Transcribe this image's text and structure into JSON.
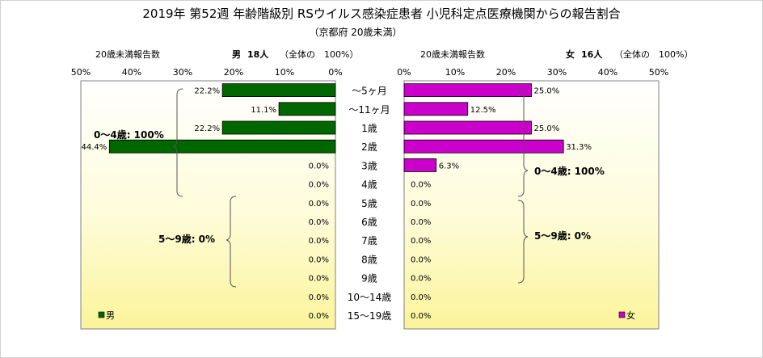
{
  "chart_data": {
    "type": "bar",
    "title": "2019年 第52週 年齢階級別 RSウイルス感染症患者 小児科定点医療機関からの報告割合",
    "subtitle": "（京都府 20歳未満）",
    "categories": [
      "～5ヶ月",
      "～11ヶ月",
      "1歳",
      "2歳",
      "3歳",
      "4歳",
      "5歳",
      "6歳",
      "7歳",
      "8歳",
      "9歳",
      "10～14歳",
      "15～19歳"
    ],
    "axis_ticks": [
      "50%",
      "40%",
      "30%",
      "20%",
      "10%",
      "0%",
      "0%",
      "10%",
      "20%",
      "30%",
      "40%",
      "50%"
    ],
    "xlim": [
      0,
      50
    ],
    "male": {
      "header_label": "20歳未満報告数",
      "name": "男",
      "count_text": "18人",
      "total_text": "（全体の　100%）",
      "legend": "男",
      "color": "#006600",
      "values": [
        22.2,
        11.1,
        22.2,
        44.4,
        0.0,
        0.0,
        0.0,
        0.0,
        0.0,
        0.0,
        0.0,
        0.0,
        0.0
      ],
      "value_labels": [
        "22.2%",
        "11.1%",
        "22.2%",
        "44.4%",
        "0.0%",
        "0.0%",
        "0.0%",
        "0.0%",
        "0.0%",
        "0.0%",
        "0.0%",
        "0.0%",
        "0.0%"
      ],
      "group_labels": [
        "0～4歳: 100%",
        "5～9歳: 0%"
      ]
    },
    "female": {
      "header_label": "20歳未満報告数",
      "name": "女",
      "count_text": "16人",
      "total_text": "（全体の　100%）",
      "legend": "女",
      "color": "#cc00cc",
      "values": [
        25.0,
        12.5,
        25.0,
        31.3,
        6.3,
        0.0,
        0.0,
        0.0,
        0.0,
        0.0,
        0.0,
        0.0,
        0.0
      ],
      "value_labels": [
        "25.0%",
        "12.5%",
        "25.0%",
        "31.3%",
        "6.3%",
        "0.0%",
        "0.0%",
        "0.0%",
        "0.0%",
        "0.0%",
        "0.0%",
        "0.0%",
        "0.0%"
      ],
      "group_labels": [
        "0～4歳: 100%",
        "5～9歳: 0%"
      ]
    }
  }
}
